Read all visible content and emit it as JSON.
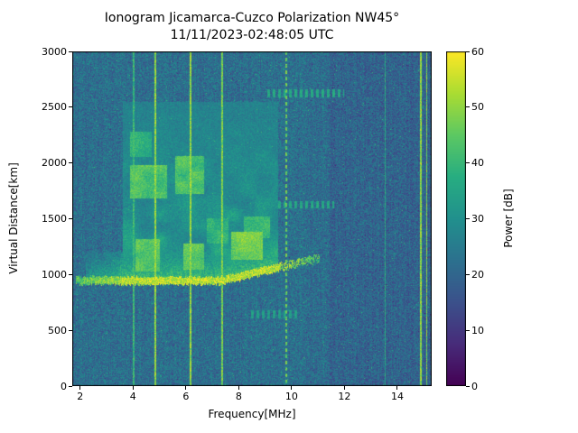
{
  "chart_data": {
    "type": "heatmap",
    "title": "Ionogram Jicamarca-Cuzco Polarization NW45°",
    "subtitle": "11/11/2023-02:48:05 UTC",
    "xlabel": "Frequency[MHz]",
    "ylabel": "Virtual Distance[km]",
    "colorbar_label": "Power [dB]",
    "colormap": "viridis",
    "xlim": [
      1.7,
      15.3
    ],
    "ylim": [
      0,
      3000
    ],
    "clim": [
      0,
      60
    ],
    "x_ticks": [
      2,
      4,
      6,
      8,
      10,
      12,
      14
    ],
    "y_ticks": [
      0,
      500,
      1000,
      1500,
      2000,
      2500,
      3000
    ],
    "colorbar_ticks": [
      0,
      10,
      20,
      30,
      40,
      50,
      60
    ],
    "background_noise_db": {
      "mean": 22,
      "spread": 14,
      "quiet_above_mhz": 11.4,
      "quiet_drop_db": 2.5
    },
    "echo_trace": {
      "f_start_mhz": 1.85,
      "f_end_mhz": 11.05,
      "base_km": 950,
      "slope_start_mhz": 7.4,
      "slope_km_per_mhz": 55,
      "peak_db": 55
    },
    "spread_f_region": {
      "f0": 3.6,
      "f1": 9.5,
      "d0": 1020,
      "d1": 2550,
      "base_db": 26,
      "amp_db": 26
    },
    "echo_clusters": [
      {
        "f0": 3.9,
        "f1": 5.3,
        "d0": 1680,
        "d1": 1980,
        "db": 46
      },
      {
        "f0": 5.6,
        "f1": 6.7,
        "d0": 1720,
        "d1": 2060,
        "db": 46
      },
      {
        "f0": 3.9,
        "f1": 4.7,
        "d0": 2050,
        "d1": 2280,
        "db": 42
      },
      {
        "f0": 7.7,
        "f1": 8.9,
        "d0": 1130,
        "d1": 1380,
        "db": 50
      },
      {
        "f0": 5.9,
        "f1": 6.7,
        "d0": 1040,
        "d1": 1280,
        "db": 48
      },
      {
        "f0": 4.1,
        "f1": 5.0,
        "d0": 1030,
        "d1": 1320,
        "db": 48
      },
      {
        "f0": 8.2,
        "f1": 9.2,
        "d0": 1330,
        "d1": 1520,
        "db": 44
      },
      {
        "f0": 6.8,
        "f1": 7.6,
        "d0": 1280,
        "d1": 1500,
        "db": 42
      }
    ],
    "rfi_lines": [
      {
        "mhz": 4.02,
        "db": 40,
        "halfwidth_mhz": 0.025,
        "dotted": false
      },
      {
        "mhz": 4.84,
        "db": 50,
        "halfwidth_mhz": 0.028,
        "dotted": false
      },
      {
        "mhz": 6.18,
        "db": 50,
        "halfwidth_mhz": 0.028,
        "dotted": false
      },
      {
        "mhz": 7.37,
        "db": 48,
        "halfwidth_mhz": 0.028,
        "dotted": false
      },
      {
        "mhz": 9.8,
        "db": 46,
        "halfwidth_mhz": 0.025,
        "dotted": true
      },
      {
        "mhz": 13.55,
        "db": 36,
        "halfwidth_mhz": 0.022,
        "dotted": false
      },
      {
        "mhz": 14.9,
        "db": 50,
        "halfwidth_mhz": 0.03,
        "dotted": false
      },
      {
        "mhz": 15.12,
        "db": 48,
        "halfwidth_mhz": 0.025,
        "dotted": false
      }
    ],
    "faint_bands": [
      {
        "f0": 9.0,
        "f1": 12.0,
        "d0": 2590,
        "d1": 2660,
        "db": 36
      },
      {
        "f0": 9.4,
        "f1": 11.6,
        "d0": 1590,
        "d1": 1660,
        "db": 36
      },
      {
        "f0": 8.4,
        "f1": 10.3,
        "d0": 610,
        "d1": 680,
        "db": 34
      }
    ]
  }
}
